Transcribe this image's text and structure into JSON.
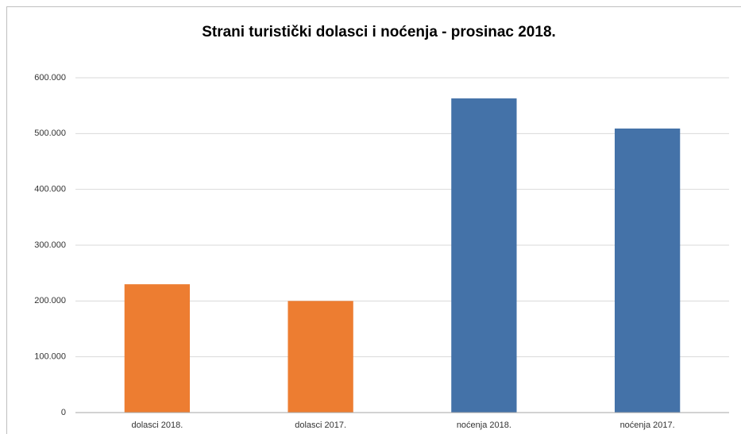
{
  "chart_data": {
    "type": "bar",
    "title": "Strani turistički dolasci i noćenja - prosinac 2018.",
    "categories": [
      "dolasci 2018.",
      "dolasci 2017.",
      "noćenja 2018.",
      "noćenja 2017."
    ],
    "values": [
      230000,
      200000,
      563000,
      509000
    ],
    "colors": [
      "#ed7d31",
      "#ed7d31",
      "#4472a8",
      "#4472a8"
    ],
    "ylim": [
      0,
      600000
    ],
    "yticks": [
      0,
      {
        "value": 100000,
        "label": "100.000"
      },
      {
        "value": 200000,
        "label": "200.000"
      },
      {
        "value": 300000,
        "label": "300.000"
      },
      {
        "value": 400000,
        "label": "400.000"
      },
      {
        "value": 500000,
        "label": "500.000"
      },
      {
        "value": 600000,
        "label": "600.000"
      }
    ],
    "grid": true
  }
}
